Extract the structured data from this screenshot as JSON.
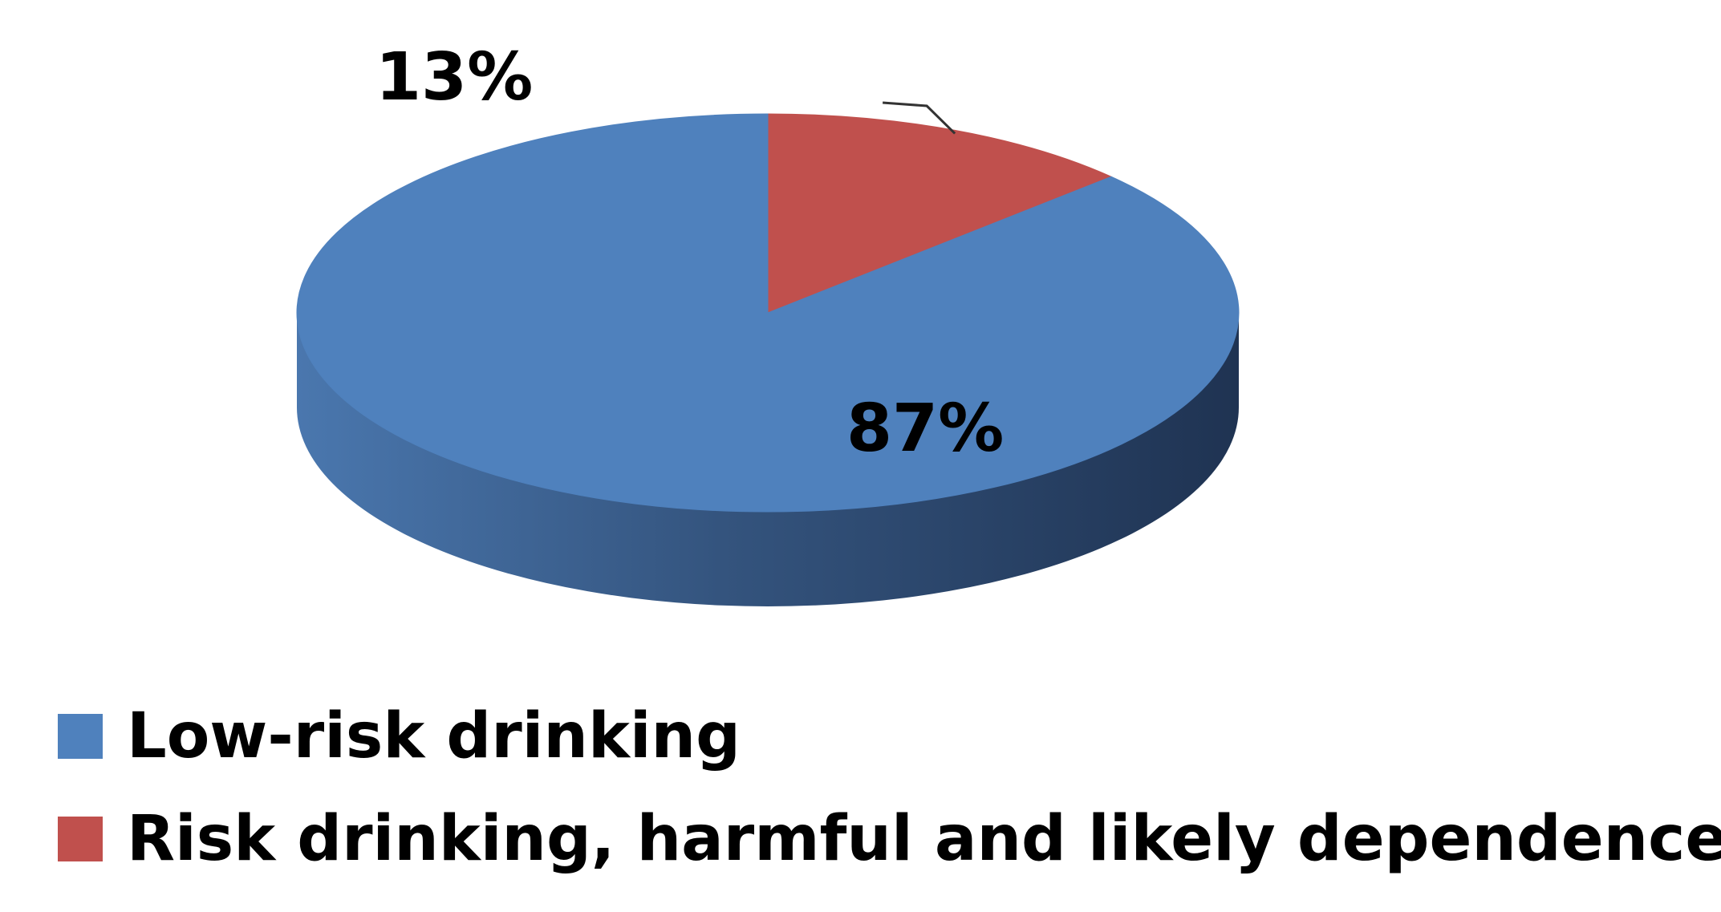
{
  "chart_data": {
    "type": "pie",
    "style": "3d",
    "categories": [
      "Low-risk drinking",
      "Risk drinking, harmful and likely dependence"
    ],
    "values": [
      87,
      13
    ],
    "data_labels": [
      "87%",
      "13%"
    ],
    "colors": [
      "#4F81BD",
      "#C0504D"
    ],
    "legend_position": "bottom-left"
  }
}
